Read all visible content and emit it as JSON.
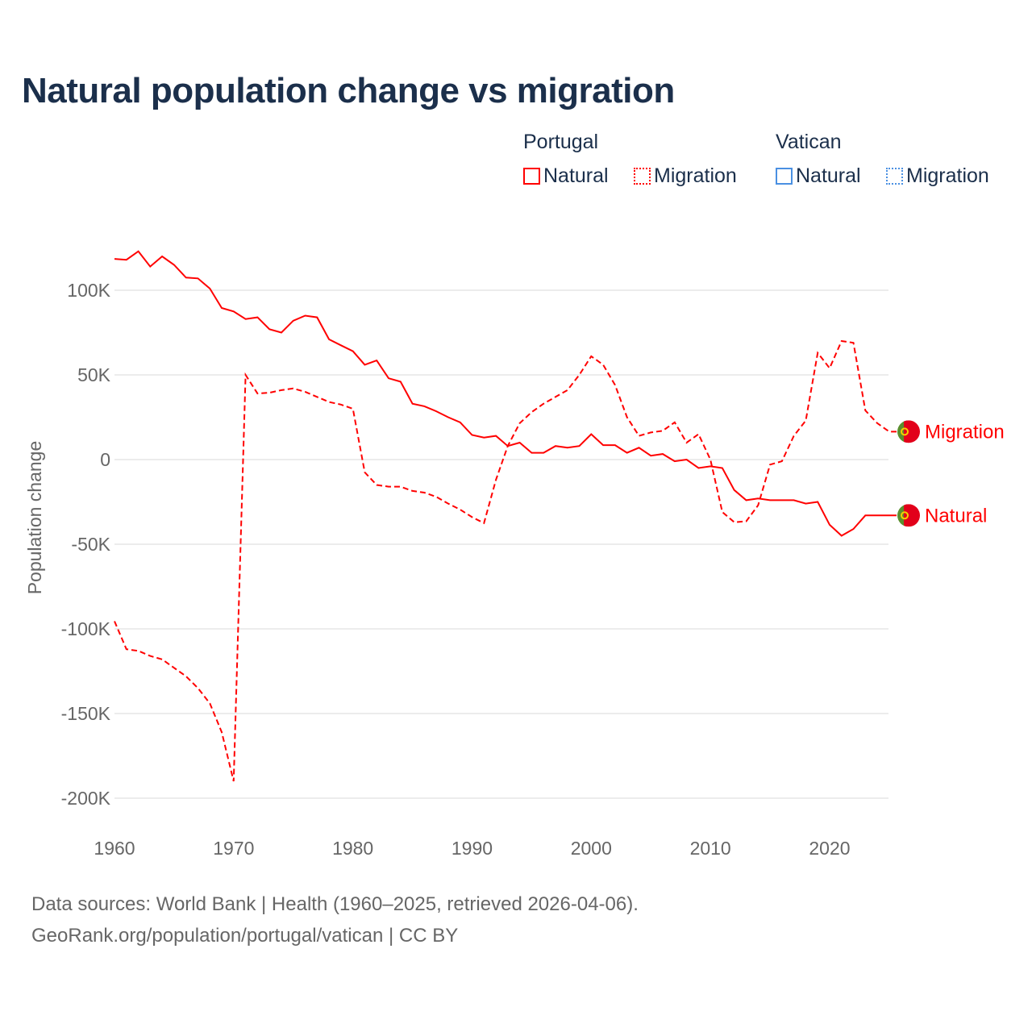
{
  "title": "Natural population change vs migration",
  "legend": {
    "groups": [
      {
        "name": "Portugal",
        "color": "#ff0000",
        "items": [
          "Natural",
          "Migration"
        ]
      },
      {
        "name": "Vatican",
        "color": "#4a90e2",
        "items": [
          "Natural",
          "Migration"
        ]
      }
    ]
  },
  "footer": {
    "line1": "Data sources: World Bank | Health (1960–2025, retrieved 2026-04-06).",
    "line2": "GeoRank.org/population/portugal/vatican | CC BY"
  },
  "chart_data": {
    "type": "line",
    "title": "Natural population change vs migration",
    "ylabel": "Population change",
    "xlabel": "",
    "ylim": [
      -200000,
      120000
    ],
    "yticks": [
      {
        "v": 100,
        "label": "100K"
      },
      {
        "v": 50,
        "label": "50K"
      },
      {
        "v": 0,
        "label": "0"
      },
      {
        "v": -50,
        "label": "-50K"
      },
      {
        "v": -100,
        "label": "-100K"
      },
      {
        "v": -150,
        "label": "-150K"
      },
      {
        "v": -200,
        "label": "-200K"
      }
    ],
    "xticks": [
      1960,
      1970,
      1980,
      1990,
      2000,
      2010,
      2020
    ],
    "x_start": 1960,
    "units": "thousands",
    "series": [
      {
        "name": "Natural",
        "country": "Portugal",
        "color": "#ff0000",
        "style": "solid",
        "end_label": "Natural",
        "values": [
          118.5,
          118,
          123,
          114,
          120,
          115,
          107.5,
          107,
          101,
          89.5,
          87.5,
          83,
          84,
          77,
          75,
          82,
          85,
          84,
          71,
          67.5,
          64,
          56,
          58.5,
          48,
          46,
          33,
          31.5,
          28.5,
          25,
          22,
          14.5,
          13,
          14,
          8,
          10,
          4,
          4,
          8,
          7,
          8,
          15,
          8.5,
          8.5,
          4,
          7,
          2.3,
          3.3,
          -1,
          0,
          -5,
          -4,
          -5,
          -18,
          -24,
          -23,
          -24,
          -24,
          -24,
          -26,
          -25,
          -38.5,
          -45,
          -41,
          -33,
          -33,
          -33
        ]
      },
      {
        "name": "Migration",
        "country": "Portugal",
        "color": "#ff0000",
        "style": "dashed",
        "end_label": "Migration",
        "values": [
          -95.5,
          -112,
          -113,
          -116,
          -118,
          -123,
          -128,
          -135,
          -144,
          -161,
          -190,
          50,
          39,
          39.5,
          41,
          42,
          40,
          37,
          34,
          32.5,
          30,
          -7.5,
          -15,
          -16,
          -16,
          -18.5,
          -19.5,
          -22,
          -26,
          -29.5,
          -34,
          -37.5,
          -12,
          8,
          21.5,
          28,
          33,
          37,
          41,
          50,
          61,
          56,
          44,
          25,
          14,
          16,
          17,
          22,
          10,
          15,
          0,
          -31,
          -37,
          -36.5,
          -27,
          -3,
          -1,
          14,
          23,
          63,
          54,
          70,
          69,
          29,
          21.5,
          16.5
        ]
      }
    ]
  }
}
